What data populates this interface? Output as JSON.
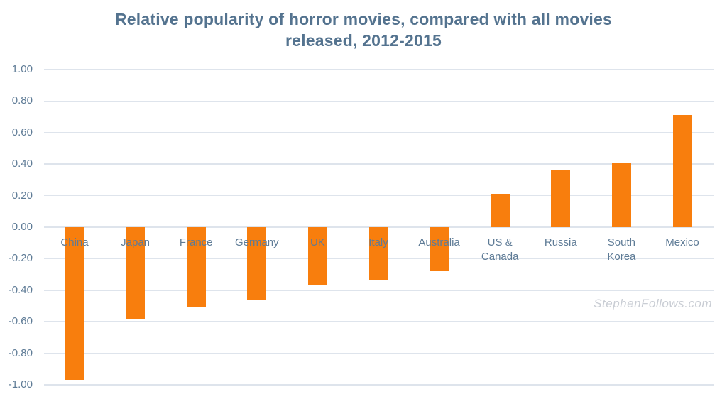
{
  "title": {
    "line1": "Relative popularity of horror movies, compared with all movies",
    "line2": "released, 2012-2015"
  },
  "watermark": "StephenFollows.com",
  "chart_data": {
    "type": "bar",
    "title": "Relative popularity of horror movies, compared with all movies released, 2012-2015",
    "categories": [
      "China",
      "Japan",
      "France",
      "Germany",
      "UK",
      "Italy",
      "Australia",
      "US & Canada",
      "Russia",
      "South Korea",
      "Mexico"
    ],
    "category_label_lines": [
      "China",
      "Japan",
      "France",
      "Germany",
      "UK",
      "Italy",
      "Australia",
      "US &\nCanada",
      "Russia",
      "South\nKorea",
      "Mexico"
    ],
    "values": [
      -0.97,
      -0.58,
      -0.51,
      -0.46,
      -0.37,
      -0.34,
      -0.28,
      0.21,
      0.36,
      0.41,
      0.71
    ],
    "xlabel": "",
    "ylabel": "",
    "ylim": [
      -1.0,
      1.0
    ],
    "ytick_step": 0.2,
    "ytick_labels": [
      "1.00",
      "0.80",
      "0.60",
      "0.40",
      "0.20",
      "0.00",
      "-0.20",
      "-0.40",
      "-0.60",
      "-0.80",
      "-1.00"
    ],
    "grid": true,
    "legend_position": "none",
    "bar_color": "#F87E0D",
    "colors": {
      "background": "#FFFFFF",
      "title": "#54738F",
      "axis_labels": "#5E7B96",
      "gridline": "#DEE4EC",
      "watermark": "#C9CDD4"
    }
  }
}
